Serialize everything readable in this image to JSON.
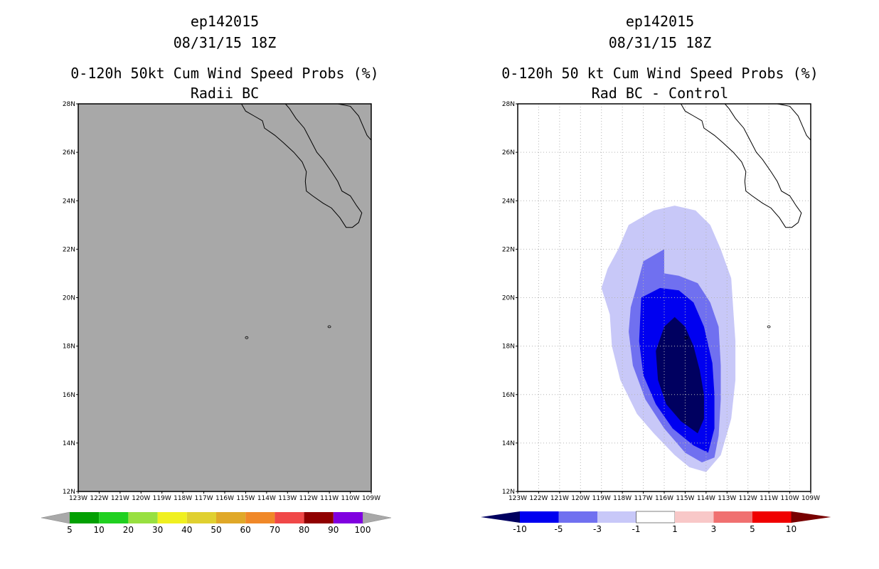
{
  "chart_data": [
    {
      "type": "heatmap",
      "storm": "ep142015",
      "datetime": "08/31/15 18Z",
      "title": "0-120h 50kt Cum Wind Speed Probs (%)",
      "subtitle": "Radii BC",
      "xlabels": [
        "123W",
        "122W",
        "121W",
        "120W",
        "119W",
        "118W",
        "117W",
        "116W",
        "115W",
        "114W",
        "113W",
        "112W",
        "111W",
        "110W",
        "109W"
      ],
      "ylabels": [
        "28N",
        "26N",
        "24N",
        "22N",
        "20N",
        "18N",
        "16N",
        "14N",
        "12N"
      ],
      "xlim": [
        -123,
        -109
      ],
      "ylim": [
        12,
        28
      ],
      "field_fill": "#a8a8a8",
      "field_description": "Field below 5% over entire domain",
      "colorbar": {
        "levels": [
          "5",
          "10",
          "20",
          "30",
          "40",
          "50",
          "60",
          "70",
          "80",
          "90",
          "100"
        ],
        "colors": [
          "#02a002",
          "#20d020",
          "#98e040",
          "#f0f020",
          "#e0d030",
          "#e0a828",
          "#f08828",
          "#f04848",
          "#900000",
          "#8000e0"
        ],
        "end_color": "#a8a8a8"
      }
    },
    {
      "type": "heatmap",
      "storm": "ep142015",
      "datetime": "08/31/15 18Z",
      "title": "0-120h 50 kt Cum Wind Speed Probs (%)",
      "subtitle": "Rad BC - Control",
      "xlabels": [
        "123W",
        "122W",
        "121W",
        "120W",
        "119W",
        "118W",
        "117W",
        "116W",
        "115W",
        "114W",
        "113W",
        "112W",
        "111W",
        "110W",
        "109W"
      ],
      "ylabels": [
        "28N",
        "26N",
        "24N",
        "22N",
        "20N",
        "18N",
        "16N",
        "14N",
        "12N"
      ],
      "xlim": [
        -123,
        -109
      ],
      "ylim": [
        12,
        28
      ],
      "grid": true,
      "difference_contours": [
        {
          "level": "-1 to -3",
          "color": "#c8c8f8",
          "polygon": [
            [
              -117.7,
              23.0
            ],
            [
              -116.5,
              23.6
            ],
            [
              -115.5,
              23.8
            ],
            [
              -114.5,
              23.6
            ],
            [
              -113.8,
              23.0
            ],
            [
              -113.3,
              22.0
            ],
            [
              -112.8,
              20.8
            ],
            [
              -112.7,
              19.5
            ],
            [
              -112.6,
              18.2
            ],
            [
              -112.6,
              16.6
            ],
            [
              -112.8,
              15.0
            ],
            [
              -113.3,
              13.5
            ],
            [
              -114.0,
              12.8
            ],
            [
              -114.8,
              13.0
            ],
            [
              -115.5,
              13.5
            ],
            [
              -116.5,
              14.4
            ],
            [
              -117.3,
              15.2
            ],
            [
              -118.1,
              16.6
            ],
            [
              -118.5,
              18.0
            ],
            [
              -118.6,
              19.3
            ],
            [
              -119.0,
              20.4
            ],
            [
              -118.7,
              21.2
            ],
            [
              -118.2,
              22.0
            ]
          ]
        },
        {
          "level": "-3 to -5",
          "color": "#7070f0",
          "polygon": [
            [
              -117.0,
              21.5
            ],
            [
              -116.0,
              22.0
            ],
            [
              -116.0,
              21.0
            ],
            [
              -115.3,
              20.9
            ],
            [
              -114.4,
              20.6
            ],
            [
              -113.8,
              19.8
            ],
            [
              -113.4,
              18.8
            ],
            [
              -113.3,
              17.2
            ],
            [
              -113.3,
              15.8
            ],
            [
              -113.4,
              14.3
            ],
            [
              -113.6,
              13.4
            ],
            [
              -114.2,
              13.2
            ],
            [
              -115.0,
              13.6
            ],
            [
              -116.0,
              14.6
            ],
            [
              -116.9,
              15.8
            ],
            [
              -117.5,
              17.2
            ],
            [
              -117.7,
              18.6
            ],
            [
              -117.6,
              19.6
            ],
            [
              -117.3,
              20.5
            ]
          ]
        },
        {
          "level": "-5 to -10",
          "color": "#0000f0",
          "polygon": [
            [
              -117.1,
              20.0
            ],
            [
              -116.2,
              20.4
            ],
            [
              -115.3,
              20.3
            ],
            [
              -114.6,
              19.8
            ],
            [
              -114.1,
              18.8
            ],
            [
              -113.7,
              17.3
            ],
            [
              -113.6,
              16.0
            ],
            [
              -113.6,
              14.6
            ],
            [
              -113.9,
              13.6
            ],
            [
              -114.6,
              13.9
            ],
            [
              -115.6,
              14.6
            ],
            [
              -116.4,
              15.6
            ],
            [
              -117.0,
              16.8
            ],
            [
              -117.2,
              18.2
            ]
          ]
        },
        {
          "level": "< -10",
          "color": "#000060",
          "polygon": [
            [
              -116.0,
              18.8
            ],
            [
              -115.5,
              19.2
            ],
            [
              -115.0,
              18.8
            ],
            [
              -114.6,
              18.0
            ],
            [
              -114.3,
              17.0
            ],
            [
              -114.1,
              16.0
            ],
            [
              -114.1,
              15.0
            ],
            [
              -114.4,
              14.4
            ],
            [
              -115.2,
              14.9
            ],
            [
              -115.9,
              15.6
            ],
            [
              -116.3,
              16.6
            ],
            [
              -116.4,
              17.8
            ]
          ]
        }
      ],
      "colorbar": {
        "levels": [
          "-10",
          "-5",
          "-3",
          "-1",
          "1",
          "3",
          "5",
          "10"
        ],
        "colors": [
          "#0000f0",
          "#7070f0",
          "#c8c8f8",
          "#ffffff",
          "#f8c8c8",
          "#f07070",
          "#f00000"
        ],
        "low_end_color": "#000060",
        "high_end_color": "#780000"
      }
    }
  ]
}
